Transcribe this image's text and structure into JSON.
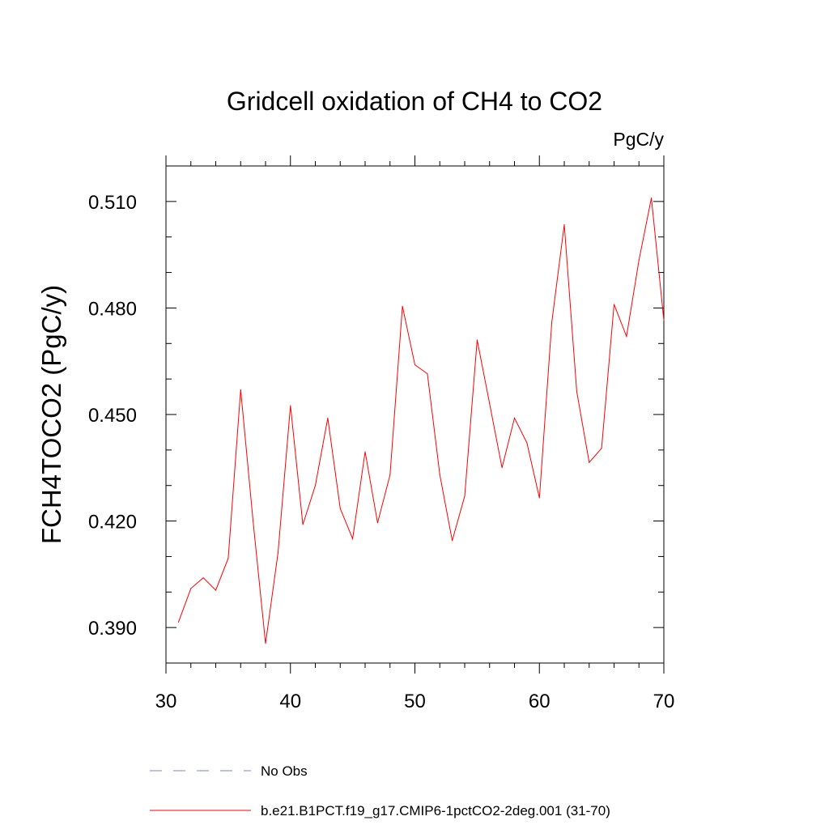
{
  "chart_data": {
    "type": "line",
    "title": "Gridcell oxidation of CH4 to CO2",
    "units_label": "PgC/y",
    "xlabel": "",
    "ylabel": "FCH4TOCO2  (PgC/y)",
    "xlim": [
      30,
      70
    ],
    "ylim": [
      0.38,
      0.52
    ],
    "x_ticks": [
      30,
      40,
      50,
      60,
      70
    ],
    "y_ticks": [
      0.39,
      0.42,
      0.45,
      0.48,
      0.51
    ],
    "y_tick_labels": [
      "0.390",
      "0.420",
      "0.450",
      "0.480",
      "0.510"
    ],
    "grid": false,
    "series": [
      {
        "name": "b.e21.B1PCT.f19_g17.CMIP6-1pctCO2-2deg.001 (31-70)",
        "color": "#ff0000",
        "style": "solid",
        "x": [
          31,
          32,
          33,
          34,
          35,
          36,
          37,
          38,
          39,
          40,
          41,
          42,
          43,
          44,
          45,
          46,
          47,
          48,
          49,
          50,
          51,
          52,
          53,
          54,
          55,
          56,
          57,
          58,
          59,
          60,
          61,
          62,
          63,
          64,
          65,
          66,
          67,
          68,
          69,
          70
        ],
        "values": [
          0.3915,
          0.401,
          0.404,
          0.4005,
          0.4095,
          0.457,
          0.42,
          0.3855,
          0.411,
          0.4525,
          0.419,
          0.43,
          0.449,
          0.4235,
          0.415,
          0.4395,
          0.4195,
          0.433,
          0.4805,
          0.464,
          0.4615,
          0.433,
          0.4145,
          0.427,
          0.471,
          0.453,
          0.435,
          0.449,
          0.442,
          0.4265,
          0.476,
          0.5035,
          0.4565,
          0.4365,
          0.4405,
          0.481,
          0.472,
          0.4935,
          0.511,
          0.4765
        ]
      },
      {
        "name": "No Obs",
        "color": "#8080c0",
        "style": "dashed",
        "x": [],
        "values": []
      }
    ]
  }
}
